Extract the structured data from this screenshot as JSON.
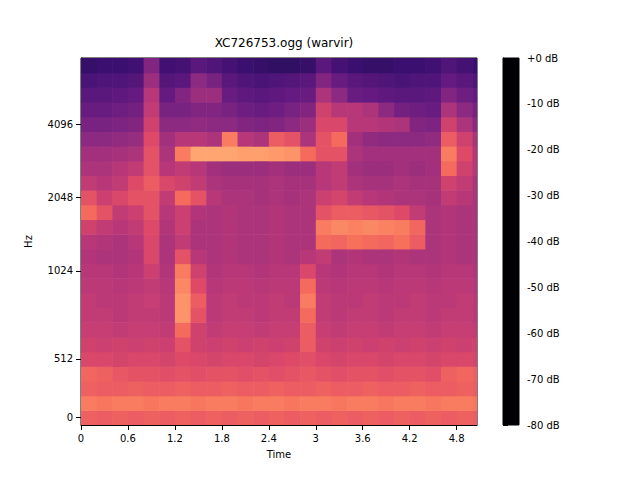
{
  "chart_data": {
    "type": "heatmap",
    "title": "XC726753.ogg (warvir)",
    "x_label": "Time",
    "y_label": "Hz",
    "x": [
      0,
      0.2,
      0.4,
      0.6,
      0.8,
      1.0,
      1.2,
      1.4,
      1.6,
      1.8,
      2.0,
      2.2,
      2.4,
      2.6,
      2.8,
      3.0,
      3.2,
      3.4,
      3.6,
      3.8,
      4.0,
      4.2,
      4.4,
      4.6,
      4.8,
      5.0
    ],
    "y": [
      0,
      128,
      256,
      384,
      512,
      597,
      683,
      768,
      853,
      939,
      1024,
      1176,
      1351,
      1552,
      1783,
      2048,
      2353,
      2702,
      3104,
      3566,
      4096,
      4705,
      5405,
      6208,
      7132
    ],
    "values": [
      [
        -27,
        -28,
        -27,
        -28,
        -27,
        -28,
        -27,
        -28,
        -27,
        -28,
        -27,
        -28,
        -27,
        -28,
        -27,
        -28,
        -27,
        -28,
        -27,
        -28,
        -27,
        -28,
        -27,
        -28,
        -27,
        -28
      ],
      [
        -22,
        -23,
        -22,
        -22,
        -23,
        -22,
        -22,
        -23,
        -22,
        -22,
        -23,
        -22,
        -22,
        -23,
        -22,
        -22,
        -23,
        -22,
        -22,
        -23,
        -22,
        -22,
        -23,
        -22,
        -22,
        -23
      ],
      [
        -27,
        -28,
        -28,
        -27,
        -28,
        -28,
        -27,
        -28,
        -28,
        -27,
        -28,
        -28,
        -27,
        -28,
        -28,
        -27,
        -28,
        -28,
        -27,
        -28,
        -28,
        -27,
        -28,
        -28,
        -27,
        -28
      ],
      [
        -26,
        -27,
        -29,
        -30,
        -30,
        -31,
        -30,
        -31,
        -30,
        -30,
        -31,
        -30,
        -31,
        -30,
        -29,
        -30,
        -31,
        -30,
        -30,
        -31,
        -30,
        -30,
        -31,
        -27,
        -26,
        -27
      ],
      [
        -33,
        -33,
        -34,
        -33,
        -33,
        -34,
        -32,
        -33,
        -34,
        -33,
        -33,
        -34,
        -33,
        -32,
        -31,
        -33,
        -34,
        -33,
        -33,
        -34,
        -33,
        -33,
        -34,
        -33,
        -33,
        -34
      ],
      [
        -35,
        -36,
        -35,
        -36,
        -35,
        -36,
        -30,
        -35,
        -36,
        -35,
        -36,
        -35,
        -36,
        -35,
        -28,
        -35,
        -36,
        -35,
        -36,
        -35,
        -36,
        -35,
        -36,
        -35,
        -36,
        -35
      ],
      [
        -37,
        -37,
        -38,
        -37,
        -37,
        -38,
        -25,
        -35,
        -38,
        -37,
        -37,
        -38,
        -37,
        -37,
        -28,
        -37,
        -38,
        -37,
        -37,
        -38,
        -37,
        -37,
        -38,
        -37,
        -37,
        -38
      ],
      [
        -38,
        -38,
        -39,
        -38,
        -38,
        -39,
        -18,
        -30,
        -39,
        -38,
        -38,
        -39,
        -38,
        -38,
        -25,
        -38,
        -39,
        -38,
        -38,
        -39,
        -38,
        -38,
        -39,
        -38,
        -38,
        -39
      ],
      [
        -38,
        -39,
        -39,
        -38,
        -37,
        -39,
        -18,
        -28,
        -39,
        -38,
        -39,
        -39,
        -38,
        -39,
        -22,
        -38,
        -39,
        -39,
        -38,
        -39,
        -39,
        -38,
        -39,
        -39,
        -38,
        -39
      ],
      [
        -39,
        -39,
        -40,
        -39,
        -38,
        -40,
        -20,
        -32,
        -40,
        -39,
        -39,
        -40,
        -39,
        -39,
        -25,
        -39,
        -40,
        -39,
        -39,
        -40,
        -39,
        -39,
        -40,
        -39,
        -39,
        -40
      ],
      [
        -40,
        -40,
        -41,
        -40,
        -36,
        -41,
        -22,
        -35,
        -41,
        -40,
        -40,
        -41,
        -40,
        -40,
        -33,
        -40,
        -41,
        -40,
        -40,
        -41,
        -40,
        -40,
        -41,
        -40,
        -40,
        -41
      ],
      [
        -41,
        -42,
        -42,
        -41,
        -33,
        -42,
        -30,
        -40,
        -42,
        -41,
        -42,
        -42,
        -41,
        -42,
        -40,
        -38,
        -42,
        -41,
        -42,
        -42,
        -41,
        -42,
        -42,
        -41,
        -42,
        -42
      ],
      [
        -40,
        -41,
        -42,
        -40,
        -33,
        -42,
        -38,
        -42,
        -42,
        -41,
        -42,
        -42,
        -41,
        -42,
        -42,
        -25,
        -26,
        -24,
        -25,
        -26,
        -24,
        -28,
        -42,
        -41,
        -42,
        -42
      ],
      [
        -35,
        -38,
        -40,
        -38,
        -32,
        -41,
        -36,
        -42,
        -42,
        -41,
        -42,
        -42,
        -41,
        -42,
        -42,
        -22,
        -20,
        -21,
        -20,
        -21,
        -22,
        -26,
        -42,
        -41,
        -42,
        -42
      ],
      [
        -25,
        -30,
        -38,
        -36,
        -30,
        -40,
        -36,
        -41,
        -42,
        -41,
        -42,
        -42,
        -41,
        -42,
        -42,
        -30,
        -28,
        -28,
        -29,
        -30,
        -32,
        -38,
        -42,
        -41,
        -42,
        -42
      ],
      [
        -30,
        -36,
        -33,
        -30,
        -30,
        -38,
        -25,
        -30,
        -40,
        -42,
        -42,
        -43,
        -42,
        -43,
        -42,
        -36,
        -34,
        -38,
        -40,
        -41,
        -42,
        -42,
        -43,
        -38,
        -40,
        -42
      ],
      [
        -38,
        -40,
        -38,
        -32,
        -28,
        -33,
        -35,
        -38,
        -42,
        -43,
        -43,
        -43,
        -42,
        -43,
        -43,
        -40,
        -38,
        -42,
        -43,
        -43,
        -42,
        -43,
        -43,
        -35,
        -38,
        -42
      ],
      [
        -42,
        -42,
        -40,
        -38,
        -30,
        -40,
        -38,
        -40,
        -44,
        -45,
        -45,
        -45,
        -44,
        -45,
        -45,
        -40,
        -38,
        -44,
        -45,
        -45,
        -44,
        -45,
        -44,
        -25,
        -35,
        -40
      ],
      [
        -44,
        -44,
        -43,
        -42,
        -30,
        -42,
        -22,
        -15,
        -15,
        -15,
        -16,
        -16,
        -17,
        -18,
        -25,
        -30,
        -30,
        -42,
        -44,
        -44,
        -44,
        -44,
        -44,
        -22,
        -32,
        -40
      ],
      [
        -48,
        -48,
        -47,
        -46,
        -32,
        -44,
        -40,
        -40,
        -42,
        -22,
        -40,
        -42,
        -28,
        -30,
        -42,
        -30,
        -25,
        -44,
        -47,
        -48,
        -48,
        -48,
        -47,
        -28,
        -35,
        -42
      ],
      [
        -52,
        -52,
        -51,
        -50,
        -35,
        -48,
        -48,
        -47,
        -48,
        -48,
        -50,
        -51,
        -50,
        -48,
        -45,
        -33,
        -33,
        -40,
        -40,
        -41,
        -42,
        -50,
        -51,
        -35,
        -42,
        -48
      ],
      [
        -55,
        -55,
        -54,
        -53,
        -38,
        -52,
        -52,
        -50,
        -50,
        -52,
        -54,
        -55,
        -54,
        -52,
        -50,
        -35,
        -40,
        -40,
        -42,
        -48,
        -53,
        -54,
        -55,
        -42,
        -48,
        -52
      ],
      [
        -58,
        -58,
        -57,
        -56,
        -40,
        -56,
        -50,
        -45,
        -45,
        -55,
        -57,
        -58,
        -57,
        -56,
        -55,
        -42,
        -48,
        -55,
        -56,
        -57,
        -58,
        -58,
        -57,
        -50,
        -54,
        -56
      ],
      [
        -61,
        -60,
        -60,
        -59,
        -45,
        -59,
        -58,
        -48,
        -52,
        -58,
        -60,
        -61,
        -60,
        -59,
        -58,
        -50,
        -55,
        -58,
        -59,
        -60,
        -61,
        -60,
        -60,
        -56,
        -58,
        -60
      ],
      [
        -65,
        -64,
        -64,
        -63,
        -50,
        -63,
        -62,
        -58,
        -60,
        -62,
        -64,
        -65,
        -66,
        -66,
        -65,
        -58,
        -62,
        -64,
        -65,
        -65,
        -64,
        -64,
        -63,
        -60,
        -62,
        -64
      ]
    ],
    "xlim": [
      0,
      5.06
    ],
    "xticks": [
      0,
      0.6,
      1.2,
      1.8,
      2.4,
      3,
      3.6,
      4.2,
      4.8
    ],
    "yticks": [
      0,
      512,
      1024,
      2048,
      4096
    ],
    "colorbar": {
      "range": [
        -80,
        0
      ],
      "ticks": [
        {
          "value": 0,
          "label": "+0 dB"
        },
        {
          "value": -10,
          "label": "-10 dB"
        },
        {
          "value": -20,
          "label": "-20 dB"
        },
        {
          "value": -30,
          "label": "-30 dB"
        },
        {
          "value": -40,
          "label": "-40 dB"
        },
        {
          "value": -50,
          "label": "-50 dB"
        },
        {
          "value": -60,
          "label": "-60 dB"
        },
        {
          "value": -70,
          "label": "-70 dB"
        },
        {
          "value": -80,
          "label": "-80 dB"
        }
      ]
    }
  }
}
